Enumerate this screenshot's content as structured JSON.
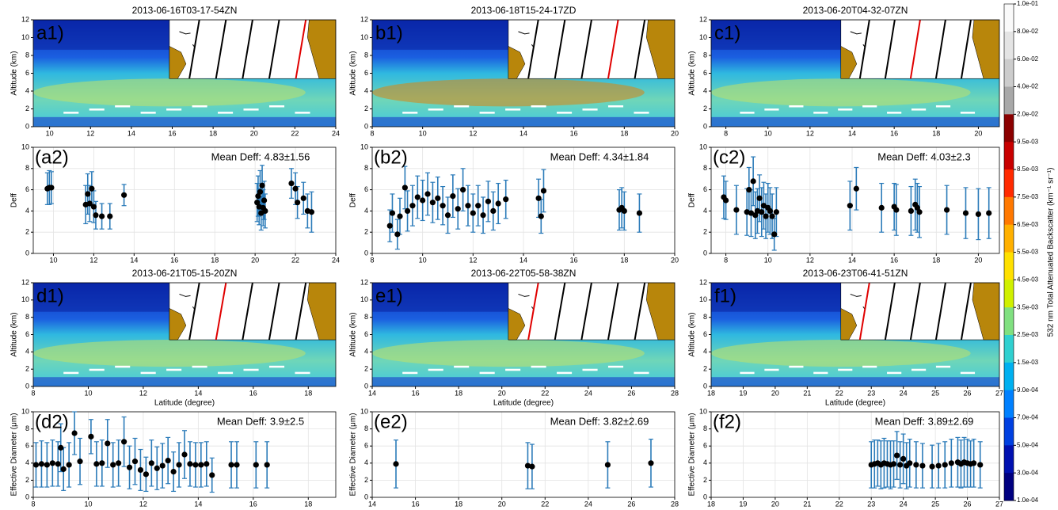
{
  "chart_data": [
    {
      "type": "curtain",
      "title": "2013-06-16T03-17-54ZN",
      "panel_label": "a1)",
      "ylabel": "Altitude (km)",
      "xlim": [
        9.2,
        24
      ],
      "xticks": [
        10,
        12,
        14,
        16,
        18,
        20,
        22,
        24
      ],
      "ylim": [
        0,
        12
      ],
      "yticks": [
        0,
        2,
        4,
        6,
        8,
        10,
        12
      ]
    },
    {
      "type": "curtain",
      "title": "2013-06-18T15-24-17ZD",
      "panel_label": "b1)",
      "ylabel": "Altitude (km)",
      "xlim": [
        8,
        20
      ],
      "xticks": [
        8,
        10,
        12,
        14,
        16,
        18,
        20
      ],
      "ylim": [
        0,
        12
      ],
      "yticks": [
        0,
        2,
        4,
        6,
        8,
        10,
        12
      ]
    },
    {
      "type": "curtain",
      "title": "2013-06-20T04-32-07ZN",
      "panel_label": "c1)",
      "ylabel": "Altitude (km)",
      "xlim": [
        7.3,
        21
      ],
      "xticks": [
        8,
        10,
        12,
        14,
        16,
        18,
        20
      ],
      "ylim": [
        0,
        12
      ],
      "yticks": [
        0,
        2,
        4,
        6,
        8,
        10,
        12
      ]
    },
    {
      "type": "errorbar",
      "panel_label": "(a2)",
      "ylabel": "Deff",
      "annotation": "Mean Deff: 4.83±1.56",
      "color": "#2b7bb9",
      "marker_color": "#000000",
      "grid": true,
      "xlim": [
        9,
        24
      ],
      "xticks": [
        10,
        12,
        14,
        16,
        18,
        20,
        22,
        24
      ],
      "ylim": [
        0,
        10
      ],
      "yticks": [
        0,
        2,
        4,
        6,
        8,
        10
      ],
      "x": [
        9.7,
        9.8,
        9.9,
        11.6,
        11.7,
        11.8,
        11.9,
        12.0,
        12.1,
        12.4,
        12.8,
        13.5,
        20.1,
        20.15,
        20.2,
        20.25,
        20.3,
        20.35,
        20.4,
        20.45,
        20.5,
        21.8,
        22.0,
        22.1,
        22.4,
        22.6,
        22.8
      ],
      "values": [
        6.1,
        6.2,
        6.2,
        4.6,
        5.6,
        4.7,
        6.1,
        4.4,
        3.6,
        3.5,
        3.5,
        5.5,
        4.8,
        5.4,
        4.4,
        5.8,
        3.8,
        6.4,
        4.3,
        5.0,
        4.0,
        6.6,
        6.1,
        4.8,
        5.2,
        4.0,
        3.9
      ],
      "errors": [
        1.5,
        1.6,
        1.5,
        1.8,
        1.9,
        1.7,
        1.6,
        1.5,
        1.3,
        1.2,
        1.2,
        1.0,
        1.8,
        1.9,
        1.7,
        2.0,
        1.6,
        1.9,
        1.7,
        1.8,
        1.6,
        1.4,
        1.5,
        1.5,
        1.5,
        1.6,
        1.9
      ]
    },
    {
      "type": "errorbar",
      "panel_label": "(b2)",
      "ylabel": "Deff",
      "annotation": "Mean Deff: 4.34±1.84",
      "color": "#2b7bb9",
      "marker_color": "#000000",
      "grid": true,
      "xlim": [
        8,
        20
      ],
      "xticks": [
        8,
        10,
        12,
        14,
        16,
        18,
        20
      ],
      "ylim": [
        0,
        10
      ],
      "yticks": [
        0,
        2,
        4,
        6,
        8,
        10
      ],
      "x": [
        8.7,
        8.8,
        9.0,
        9.1,
        9.3,
        9.4,
        9.6,
        9.8,
        10.0,
        10.2,
        10.4,
        10.6,
        10.8,
        11.0,
        11.2,
        11.4,
        11.6,
        11.8,
        12.0,
        12.2,
        12.4,
        12.6,
        12.8,
        13.0,
        13.3,
        14.6,
        14.7,
        14.8,
        17.8,
        17.9,
        18.0,
        18.6
      ],
      "values": [
        2.6,
        3.8,
        1.8,
        3.5,
        6.2,
        4.0,
        4.5,
        5.3,
        5.0,
        5.6,
        4.8,
        5.2,
        4.5,
        3.6,
        5.4,
        4.2,
        6.0,
        4.5,
        3.8,
        4.5,
        3.6,
        4.9,
        4.0,
        4.7,
        5.1,
        5.2,
        3.5,
        5.9,
        4.1,
        4.3,
        4.0,
        3.8
      ],
      "errors": [
        1.5,
        1.8,
        1.4,
        1.7,
        2.0,
        1.9,
        1.9,
        2.0,
        1.9,
        2.0,
        1.9,
        2.0,
        1.8,
        1.7,
        2.0,
        1.9,
        2.0,
        1.9,
        1.8,
        1.9,
        1.7,
        1.9,
        1.8,
        1.9,
        1.8,
        1.8,
        1.6,
        2.0,
        1.9,
        1.9,
        1.8,
        1.8
      ]
    },
    {
      "type": "errorbar",
      "panel_label": "(c2)",
      "ylabel": "Deff",
      "annotation": "Mean Deff: 4.03±2.3",
      "color": "#2b7bb9",
      "marker_color": "#000000",
      "grid": true,
      "xlim": [
        7.3,
        21
      ],
      "xticks": [
        8,
        10,
        12,
        14,
        16,
        18,
        20
      ],
      "ylim": [
        0,
        10
      ],
      "yticks": [
        0,
        2,
        4,
        6,
        8,
        10
      ],
      "x": [
        7.9,
        8.0,
        8.5,
        9.0,
        9.1,
        9.2,
        9.3,
        9.4,
        9.5,
        9.6,
        9.7,
        9.8,
        9.9,
        10.0,
        10.1,
        10.2,
        10.3,
        10.4,
        13.9,
        14.2,
        15.4,
        16.0,
        16.1,
        16.8,
        17.0,
        17.1,
        17.2,
        18.5,
        19.4,
        20.0,
        20.5
      ],
      "values": [
        5.3,
        5.0,
        4.1,
        3.9,
        6.0,
        3.8,
        6.8,
        3.6,
        4.0,
        5.2,
        3.9,
        4.5,
        3.5,
        4.3,
        4.0,
        3.5,
        1.8,
        3.9,
        4.5,
        6.1,
        4.3,
        4.4,
        4.1,
        4.0,
        4.6,
        4.3,
        3.9,
        4.1,
        3.8,
        3.7,
        3.8
      ],
      "errors": [
        2.0,
        1.8,
        2.3,
        2.2,
        2.1,
        2.2,
        2.3,
        2.2,
        2.1,
        2.2,
        2.3,
        2.2,
        2.1,
        2.3,
        2.2,
        2.1,
        1.5,
        2.3,
        2.3,
        2.0,
        2.3,
        2.2,
        2.4,
        2.3,
        2.4,
        2.3,
        2.4,
        2.3,
        2.4,
        2.4,
        2.4
      ]
    },
    {
      "type": "curtain",
      "title": "2013-06-21T05-15-20ZN",
      "panel_label": "d1)",
      "ylabel": "Altitude (km)",
      "xlabel": "Latitude (degree)",
      "xlim": [
        8,
        19
      ],
      "xticks": [
        8,
        10,
        12,
        14,
        16,
        18
      ],
      "ylim": [
        0,
        12
      ],
      "yticks": [
        0,
        2,
        4,
        6,
        8,
        10,
        12
      ]
    },
    {
      "type": "curtain",
      "title": "2013-06-22T05-58-38ZN",
      "panel_label": "e1)",
      "ylabel": "Altitude (km)",
      "xlabel": "Latitude (degree)",
      "xlim": [
        14,
        28
      ],
      "xticks": [
        14,
        16,
        18,
        20,
        22,
        24,
        26,
        28
      ],
      "ylim": [
        0,
        12
      ],
      "yticks": [
        0,
        2,
        4,
        6,
        8,
        10,
        12
      ]
    },
    {
      "type": "curtain",
      "title": "2013-06-23T06-41-51ZN",
      "panel_label": "f1)",
      "ylabel": "Altitude (km)",
      "xlabel": "Latitude (degree)",
      "xlim": [
        18,
        27
      ],
      "xticks": [
        18,
        19,
        20,
        21,
        22,
        23,
        24,
        25,
        26,
        27
      ],
      "ylim": [
        0,
        12
      ],
      "yticks": [
        0,
        2,
        4,
        6,
        8,
        10,
        12
      ]
    },
    {
      "type": "errorbar",
      "panel_label": "(d2)",
      "ylabel": "Effective Diameter (μm)",
      "annotation": "Mean Deff: 3.9±2.5",
      "color": "#2b7bb9",
      "marker_color": "#000000",
      "grid": true,
      "xlim": [
        8,
        19
      ],
      "xticks": [
        8,
        10,
        12,
        14,
        16,
        18
      ],
      "ylim": [
        0,
        10
      ],
      "yticks": [
        0,
        2,
        4,
        6,
        8,
        10
      ],
      "x": [
        8.1,
        8.3,
        8.5,
        8.7,
        8.9,
        9.0,
        9.1,
        9.3,
        9.5,
        9.7,
        10.1,
        10.3,
        10.5,
        10.7,
        10.9,
        11.1,
        11.3,
        11.5,
        11.7,
        11.9,
        12.1,
        12.3,
        12.5,
        12.7,
        12.9,
        13.1,
        13.3,
        13.5,
        13.7,
        13.9,
        14.1,
        14.3,
        14.5,
        15.2,
        15.4,
        16.1,
        16.5
      ],
      "values": [
        3.8,
        3.9,
        3.8,
        4.0,
        3.9,
        5.8,
        3.3,
        3.8,
        7.5,
        4.2,
        7.1,
        3.9,
        4.0,
        6.3,
        3.8,
        4.0,
        6.5,
        3.5,
        4.2,
        3.2,
        2.7,
        4.0,
        3.4,
        3.7,
        4.3,
        3.0,
        3.8,
        5.0,
        3.9,
        3.8,
        3.8,
        3.9,
        2.6,
        3.8,
        3.8,
        3.8,
        3.8
      ],
      "errors": [
        2.6,
        2.7,
        2.6,
        2.7,
        2.6,
        2.8,
        2.5,
        2.6,
        2.5,
        2.7,
        2.0,
        2.6,
        2.7,
        2.8,
        2.6,
        2.7,
        2.9,
        2.5,
        2.7,
        2.4,
        2.0,
        2.7,
        2.5,
        2.6,
        2.7,
        2.3,
        2.6,
        2.8,
        2.6,
        2.6,
        2.6,
        2.6,
        2.0,
        2.7,
        2.7,
        2.7,
        2.7
      ]
    },
    {
      "type": "errorbar",
      "panel_label": "(e2)",
      "ylabel": "Effective Diameter (μm)",
      "annotation": "Mean Deff: 3.82±2.69",
      "color": "#2b7bb9",
      "marker_color": "#000000",
      "grid": true,
      "xlim": [
        14,
        28
      ],
      "xticks": [
        14,
        16,
        18,
        20,
        22,
        24,
        26,
        28
      ],
      "ylim": [
        0,
        10
      ],
      "yticks": [
        0,
        2,
        4,
        6,
        8,
        10
      ],
      "x": [
        15.1,
        21.2,
        21.4,
        24.9,
        26.9
      ],
      "values": [
        3.9,
        3.7,
        3.6,
        3.8,
        4.0
      ],
      "errors": [
        2.8,
        2.7,
        2.6,
        2.7,
        2.8
      ]
    },
    {
      "type": "errorbar",
      "panel_label": "(f2)",
      "ylabel": "Effective Diameter (μm)",
      "annotation": "Mean Deff: 3.89±2.69",
      "color": "#2b7bb9",
      "marker_color": "#000000",
      "grid": true,
      "xlim": [
        18,
        27
      ],
      "xticks": [
        18,
        19,
        20,
        21,
        22,
        23,
        24,
        25,
        26,
        27
      ],
      "ylim": [
        0,
        10
      ],
      "yticks": [
        0,
        2,
        4,
        6,
        8,
        10
      ],
      "x": [
        23.0,
        23.1,
        23.2,
        23.3,
        23.4,
        23.5,
        23.6,
        23.7,
        23.8,
        23.9,
        24.0,
        24.1,
        24.2,
        24.4,
        24.6,
        24.9,
        25.1,
        25.3,
        25.5,
        25.7,
        25.8,
        25.9,
        26.0,
        26.1,
        26.2,
        26.4
      ],
      "values": [
        3.8,
        3.9,
        4.0,
        3.8,
        4.0,
        3.9,
        3.8,
        3.9,
        4.9,
        3.8,
        4.5,
        3.7,
        4.0,
        3.8,
        3.7,
        3.6,
        3.7,
        3.8,
        4.0,
        4.1,
        3.9,
        4.1,
        4.0,
        3.9,
        4.0,
        3.8
      ],
      "errors": [
        2.7,
        2.8,
        2.7,
        2.8,
        2.9,
        2.7,
        2.8,
        2.7,
        2.8,
        2.7,
        2.9,
        2.7,
        2.8,
        2.7,
        2.6,
        2.5,
        2.6,
        2.7,
        2.8,
        2.9,
        2.8,
        2.9,
        2.8,
        2.7,
        2.8,
        2.7
      ]
    },
    {
      "type": "colorbar",
      "label": "532 nm Total Attenuated Backscatter (km⁻¹ sr⁻¹)",
      "categories": [
        "1.0e-01",
        "8.0e-02",
        "6.0e-02",
        "4.0e-02",
        "2.0e-02",
        "9.5e-03",
        "8.5e-03",
        "7.5e-03",
        "6.5e-03",
        "5.5e-03",
        "4.5e-03",
        "3.5e-03",
        "2.5e-03",
        "1.5e-03",
        "9.0e-04",
        "7.0e-04",
        "5.0e-04",
        "3.0e-04",
        "1.0e-04"
      ],
      "colors": [
        "#fafafa",
        "#e4e4e4",
        "#cccccc",
        "#a8a8a8",
        "#8b0000",
        "#c80000",
        "#ff2a00",
        "#ff7800",
        "#ffb000",
        "#ffe000",
        "#d0f000",
        "#80e080",
        "#30d0d0",
        "#00b0f0",
        "#0080ff",
        "#0040e0",
        "#0010b0",
        "#000080"
      ]
    }
  ]
}
